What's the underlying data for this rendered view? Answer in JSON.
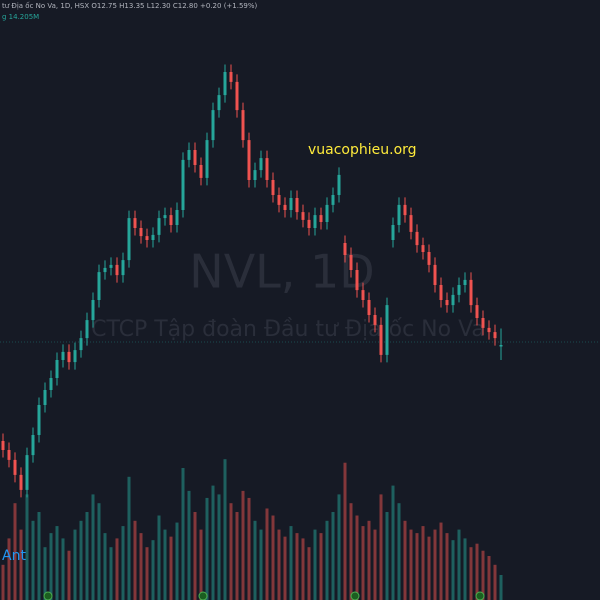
{
  "header": {
    "legend": "tư Địa ốc No Va, 1D, HSX  O12.75 H13.35 L12.30 C12.80 +0.20 (+1.59%)",
    "volume": "g 14.205M"
  },
  "watermark": {
    "symbol": "NVL, 1D",
    "company": "CTCP Tập đoàn Đầu tư Địa ốc No Va"
  },
  "annotation": "vuacophieu.org",
  "indicator": "Ant",
  "chart_data": {
    "type": "candlestick",
    "up_color": "#26a69a",
    "down_color": "#ef5350",
    "ylim": [
      4.3,
      24.3
    ],
    "vlim": [
      0,
      100
    ],
    "ohlc": [
      [
        9.6,
        9.85,
        9.05,
        9.3
      ],
      [
        9.3,
        9.55,
        8.72,
        8.97
      ],
      [
        8.97,
        9.22,
        8.22,
        8.47
      ],
      [
        8.47,
        8.72,
        7.72,
        7.97
      ],
      [
        7.97,
        9.38,
        7.72,
        9.13
      ],
      [
        9.13,
        10.05,
        8.88,
        9.8
      ],
      [
        9.8,
        11.05,
        9.55,
        10.8
      ],
      [
        10.8,
        11.55,
        10.55,
        11.3
      ],
      [
        11.3,
        11.95,
        11.05,
        11.7
      ],
      [
        11.7,
        12.55,
        11.45,
        12.3
      ],
      [
        12.3,
        12.82,
        12.05,
        12.57
      ],
      [
        12.57,
        12.82,
        11.98,
        12.23
      ],
      [
        12.23,
        12.88,
        11.98,
        12.63
      ],
      [
        12.63,
        13.28,
        12.38,
        13.03
      ],
      [
        13.03,
        13.88,
        12.78,
        13.63
      ],
      [
        13.63,
        14.55,
        13.38,
        14.3
      ],
      [
        14.3,
        15.48,
        14.05,
        15.23
      ],
      [
        15.23,
        15.62,
        14.98,
        15.37
      ],
      [
        15.37,
        15.72,
        15.12,
        15.47
      ],
      [
        15.47,
        15.72,
        14.88,
        15.13
      ],
      [
        15.13,
        15.88,
        14.88,
        15.63
      ],
      [
        15.63,
        17.28,
        15.38,
        17.03
      ],
      [
        17.03,
        17.28,
        16.45,
        16.7
      ],
      [
        16.7,
        16.95,
        16.18,
        16.43
      ],
      [
        16.43,
        16.68,
        16.05,
        16.3
      ],
      [
        16.3,
        16.72,
        16.05,
        16.47
      ],
      [
        16.47,
        17.28,
        16.22,
        17.03
      ],
      [
        17.03,
        17.38,
        16.78,
        17.13
      ],
      [
        17.13,
        17.38,
        16.55,
        16.8
      ],
      [
        16.8,
        17.55,
        16.55,
        17.3
      ],
      [
        17.3,
        19.22,
        17.05,
        18.97
      ],
      [
        18.97,
        19.55,
        18.72,
        19.3
      ],
      [
        19.3,
        19.55,
        18.55,
        18.8
      ],
      [
        18.8,
        19.05,
        18.12,
        18.37
      ],
      [
        18.37,
        19.88,
        18.12,
        19.63
      ],
      [
        19.63,
        20.88,
        19.38,
        20.63
      ],
      [
        20.63,
        21.38,
        20.38,
        21.13
      ],
      [
        21.13,
        22.15,
        20.88,
        21.9
      ],
      [
        21.9,
        22.15,
        21.32,
        21.57
      ],
      [
        21.57,
        21.82,
        20.38,
        20.63
      ],
      [
        20.63,
        20.88,
        19.38,
        19.63
      ],
      [
        19.63,
        19.88,
        18.05,
        18.3
      ],
      [
        18.3,
        18.88,
        18.05,
        18.63
      ],
      [
        18.63,
        19.28,
        18.38,
        19.03
      ],
      [
        19.03,
        19.28,
        18.05,
        18.3
      ],
      [
        18.3,
        18.55,
        17.55,
        17.8
      ],
      [
        17.8,
        18.05,
        17.22,
        17.47
      ],
      [
        17.47,
        17.72,
        17.05,
        17.3
      ],
      [
        17.3,
        17.95,
        17.05,
        17.7
      ],
      [
        17.7,
        17.95,
        16.98,
        17.23
      ],
      [
        17.23,
        17.48,
        16.72,
        16.97
      ],
      [
        16.97,
        17.22,
        16.45,
        16.7
      ],
      [
        16.7,
        17.38,
        16.45,
        17.13
      ],
      [
        17.13,
        17.38,
        16.65,
        16.9
      ],
      [
        16.9,
        17.72,
        16.65,
        17.47
      ],
      [
        17.47,
        18.05,
        17.22,
        17.8
      ],
      [
        17.8,
        18.72,
        17.55,
        18.47
      ],
      [
        16.2,
        16.45,
        15.55,
        15.8
      ],
      [
        15.8,
        16.05,
        15.05,
        15.3
      ],
      [
        15.3,
        15.55,
        14.38,
        14.63
      ],
      [
        14.63,
        14.88,
        14.05,
        14.3
      ],
      [
        14.3,
        14.55,
        13.55,
        13.8
      ],
      [
        13.8,
        14.05,
        13.22,
        13.47
      ],
      [
        13.47,
        13.72,
        12.22,
        12.47
      ],
      [
        12.47,
        14.38,
        12.22,
        14.13
      ],
      [
        16.3,
        17.05,
        16.05,
        16.8
      ],
      [
        16.8,
        17.72,
        16.55,
        17.47
      ],
      [
        17.47,
        17.72,
        16.88,
        17.13
      ],
      [
        17.13,
        17.38,
        16.32,
        16.57
      ],
      [
        16.57,
        16.82,
        15.88,
        16.13
      ],
      [
        16.13,
        16.38,
        15.65,
        15.9
      ],
      [
        15.9,
        16.15,
        15.22,
        15.47
      ],
      [
        15.47,
        15.72,
        14.55,
        14.8
      ],
      [
        14.8,
        15.05,
        14.05,
        14.3
      ],
      [
        14.3,
        14.55,
        13.88,
        14.13
      ],
      [
        14.13,
        14.72,
        13.88,
        14.47
      ],
      [
        14.47,
        15.05,
        14.22,
        14.8
      ],
      [
        14.8,
        15.22,
        14.55,
        14.97
      ],
      [
        14.97,
        15.22,
        13.88,
        14.13
      ],
      [
        14.13,
        14.38,
        13.45,
        13.7
      ],
      [
        13.7,
        13.95,
        13.12,
        13.37
      ],
      [
        13.37,
        13.62,
        12.98,
        13.23
      ],
      [
        13.23,
        13.48,
        12.78,
        13.03
      ],
      [
        12.75,
        13.35,
        12.3,
        12.8
      ]
    ],
    "volumes": [
      20,
      35,
      55,
      40,
      60,
      45,
      50,
      30,
      38,
      42,
      35,
      28,
      40,
      45,
      50,
      60,
      55,
      38,
      30,
      35,
      42,
      70,
      45,
      38,
      30,
      34,
      48,
      40,
      36,
      44,
      75,
      62,
      50,
      40,
      58,
      65,
      60,
      80,
      55,
      50,
      62,
      58,
      45,
      40,
      52,
      48,
      40,
      36,
      42,
      38,
      35,
      30,
      40,
      38,
      45,
      50,
      60,
      78,
      55,
      48,
      42,
      45,
      40,
      60,
      50,
      65,
      55,
      45,
      40,
      38,
      42,
      36,
      40,
      44,
      38,
      34,
      40,
      35,
      30,
      32,
      28,
      25,
      20,
      14.205
    ]
  }
}
